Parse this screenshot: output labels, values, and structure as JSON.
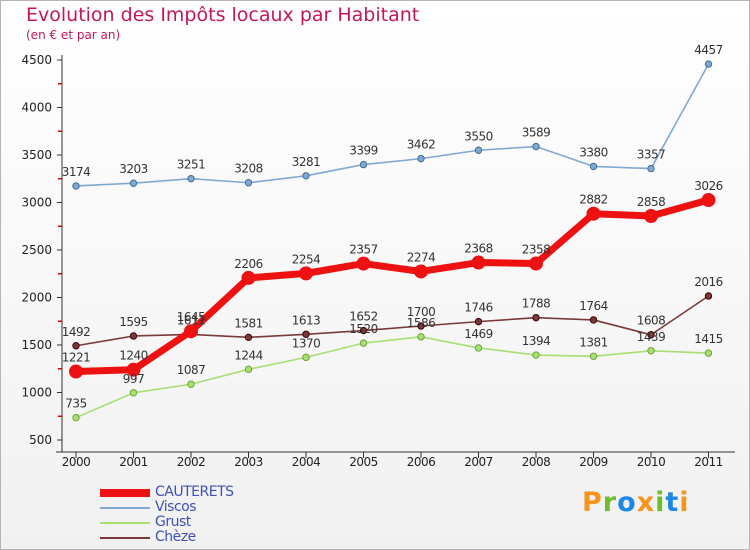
{
  "chart_data": {
    "type": "line",
    "title": "Evolution des Impôts locaux par Habitant",
    "subtitle": "(en € et par an)",
    "xlabel": "",
    "ylabel": "",
    "x": [
      "2000",
      "2001",
      "2002",
      "2003",
      "2004",
      "2005",
      "2006",
      "2007",
      "2008",
      "2009",
      "2010",
      "2011"
    ],
    "ylim": [
      500,
      4500
    ],
    "yticks": [
      "500",
      "1000",
      "1500",
      "2000",
      "2500",
      "3000",
      "3500",
      "4000",
      "4500"
    ],
    "grid": false,
    "legend_position": "bottom-left",
    "series": [
      {
        "name": "CAUTERETS",
        "color": "#ee1111",
        "values": [
          1221,
          1240,
          1645,
          2206,
          2254,
          2357,
          2274,
          2368,
          2358,
          2882,
          2858,
          3026
        ],
        "labels": [
          "1221",
          "1240",
          "1645",
          "2206",
          "2254",
          "2357",
          "2274",
          "2368",
          "2358",
          "2882",
          "2858",
          "3026"
        ]
      },
      {
        "name": "Viscos",
        "color": "#7fa9d2",
        "values": [
          3174,
          3203,
          3251,
          3208,
          3281,
          3399,
          3462,
          3550,
          3589,
          3380,
          3357,
          4457
        ],
        "labels": [
          "3174",
          "3203",
          "3251",
          "3208",
          "3281",
          "3399",
          "3462",
          "3550",
          "3589",
          "3380",
          "3357",
          "4457"
        ]
      },
      {
        "name": "Grust",
        "color": "#a7df73",
        "values": [
          735,
          997,
          1087,
          1244,
          1370,
          1520,
          1586,
          1469,
          1394,
          1381,
          1439,
          1415
        ],
        "labels": [
          "735",
          "997",
          "1087",
          "1244",
          "1370",
          "1520",
          "1586",
          "1469",
          "1394",
          "1381",
          "1439",
          "1415"
        ]
      },
      {
        "name": "Chèze",
        "color": "#7b3a3a",
        "values": [
          1492,
          1595,
          1611,
          1581,
          1613,
          1652,
          1700,
          1746,
          1788,
          1764,
          1608,
          2016
        ],
        "labels": [
          "1492",
          "1595",
          "1611",
          "1581",
          "1613",
          "1652",
          "1700",
          "1746",
          "1788",
          "1764",
          "1608",
          "2016"
        ]
      }
    ]
  },
  "logo": {
    "letters": [
      "P",
      "r",
      "o",
      "x",
      "i",
      "t",
      "i"
    ],
    "colors": [
      "#f7941d",
      "#6cbf2a",
      "#1e88e5",
      "#f7941d",
      "#6cbf2a",
      "#1e88e5",
      "#f7941d"
    ]
  }
}
